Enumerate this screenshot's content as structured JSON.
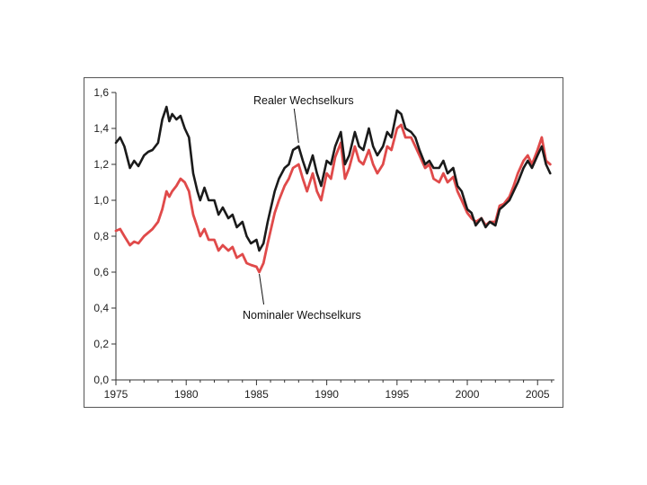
{
  "chart_data": {
    "type": "line",
    "title": "",
    "xlabel": "",
    "ylabel": "",
    "xlim": [
      1975,
      2006.2
    ],
    "ylim": [
      0,
      1.6
    ],
    "x_ticks": [
      1975,
      1980,
      1985,
      1990,
      1995,
      2000,
      2005
    ],
    "x_tick_labels": [
      "1975",
      "1980",
      "1985",
      "1990",
      "1995",
      "2000",
      "2005"
    ],
    "y_ticks": [
      0,
      0.2,
      0.4,
      0.6,
      0.8,
      1.0,
      1.2,
      1.4,
      1.6
    ],
    "y_tick_labels": [
      "0,0",
      "0,2",
      "0,4",
      "0,6",
      "0,8",
      "1,0",
      "1,2",
      "1,4",
      "1,6"
    ],
    "grid": false,
    "legend": "none",
    "annotations": [
      {
        "text": "Realer Wechselkurs",
        "series": 0,
        "point": [
          1988.0,
          1.31
        ]
      },
      {
        "text": "Nominaler Wechselkurs",
        "series": 1,
        "point": [
          1985.2,
          0.6
        ]
      }
    ],
    "series": [
      {
        "color": "#1a1a1a",
        "x": [
          1975.0,
          1975.3,
          1975.6,
          1976.0,
          1976.3,
          1976.6,
          1977.0,
          1977.3,
          1977.6,
          1978.0,
          1978.3,
          1978.6,
          1978.8,
          1979.0,
          1979.3,
          1979.6,
          1979.9,
          1980.2,
          1980.5,
          1980.8,
          1981.0,
          1981.3,
          1981.6,
          1982.0,
          1982.3,
          1982.6,
          1983.0,
          1983.3,
          1983.6,
          1984.0,
          1984.3,
          1984.6,
          1985.0,
          1985.2,
          1985.5,
          1985.8,
          1986.0,
          1986.3,
          1986.6,
          1987.0,
          1987.3,
          1987.6,
          1988.0,
          1988.3,
          1988.6,
          1989.0,
          1989.3,
          1989.6,
          1990.0,
          1990.3,
          1990.6,
          1991.0,
          1991.3,
          1991.6,
          1992.0,
          1992.3,
          1992.6,
          1993.0,
          1993.3,
          1993.6,
          1994.0,
          1994.3,
          1994.6,
          1995.0,
          1995.3,
          1995.6,
          1996.0,
          1996.3,
          1996.6,
          1997.0,
          1997.3,
          1997.6,
          1998.0,
          1998.3,
          1998.6,
          1999.0,
          1999.3,
          1999.6,
          2000.0,
          2000.3,
          2000.6,
          2001.0,
          2001.3,
          2001.6,
          2002.0,
          2002.3,
          2002.6,
          2003.0,
          2003.3,
          2003.6,
          2004.0,
          2004.3,
          2004.6,
          2005.0,
          2005.3,
          2005.6,
          2005.9
        ],
        "values": [
          1.32,
          1.35,
          1.3,
          1.18,
          1.22,
          1.19,
          1.25,
          1.27,
          1.28,
          1.32,
          1.45,
          1.52,
          1.44,
          1.48,
          1.45,
          1.47,
          1.4,
          1.35,
          1.15,
          1.05,
          1.0,
          1.07,
          1.0,
          1.0,
          0.92,
          0.96,
          0.9,
          0.92,
          0.85,
          0.88,
          0.8,
          0.76,
          0.78,
          0.72,
          0.76,
          0.88,
          0.95,
          1.05,
          1.12,
          1.18,
          1.2,
          1.28,
          1.3,
          1.22,
          1.15,
          1.25,
          1.15,
          1.08,
          1.22,
          1.2,
          1.3,
          1.38,
          1.2,
          1.25,
          1.38,
          1.3,
          1.28,
          1.4,
          1.3,
          1.25,
          1.3,
          1.38,
          1.35,
          1.5,
          1.48,
          1.4,
          1.38,
          1.35,
          1.28,
          1.2,
          1.22,
          1.18,
          1.18,
          1.22,
          1.15,
          1.18,
          1.08,
          1.05,
          0.95,
          0.93,
          0.86,
          0.9,
          0.85,
          0.88,
          0.86,
          0.95,
          0.97,
          1.0,
          1.05,
          1.1,
          1.18,
          1.22,
          1.18,
          1.25,
          1.3,
          1.2,
          1.15
        ]
      },
      {
        "color": "#e04a4a",
        "x": [
          1975.0,
          1975.3,
          1975.6,
          1976.0,
          1976.3,
          1976.6,
          1977.0,
          1977.3,
          1977.6,
          1978.0,
          1978.3,
          1978.6,
          1978.8,
          1979.0,
          1979.3,
          1979.6,
          1979.9,
          1980.2,
          1980.5,
          1980.8,
          1981.0,
          1981.3,
          1981.6,
          1982.0,
          1982.3,
          1982.6,
          1983.0,
          1983.3,
          1983.6,
          1984.0,
          1984.3,
          1984.6,
          1985.0,
          1985.2,
          1985.5,
          1985.8,
          1986.0,
          1986.3,
          1986.6,
          1987.0,
          1987.3,
          1987.6,
          1988.0,
          1988.3,
          1988.6,
          1989.0,
          1989.3,
          1989.6,
          1990.0,
          1990.3,
          1990.6,
          1991.0,
          1991.3,
          1991.6,
          1992.0,
          1992.3,
          1992.6,
          1993.0,
          1993.3,
          1993.6,
          1994.0,
          1994.3,
          1994.6,
          1995.0,
          1995.3,
          1995.6,
          1996.0,
          1996.3,
          1996.6,
          1997.0,
          1997.3,
          1997.6,
          1998.0,
          1998.3,
          1998.6,
          1999.0,
          1999.3,
          1999.6,
          2000.0,
          2000.3,
          2000.6,
          2001.0,
          2001.3,
          2001.6,
          2002.0,
          2002.3,
          2002.6,
          2003.0,
          2003.3,
          2003.6,
          2004.0,
          2004.3,
          2004.6,
          2005.0,
          2005.3,
          2005.6,
          2005.9
        ],
        "values": [
          0.83,
          0.84,
          0.8,
          0.75,
          0.77,
          0.76,
          0.8,
          0.82,
          0.84,
          0.88,
          0.95,
          1.05,
          1.02,
          1.05,
          1.08,
          1.12,
          1.1,
          1.05,
          0.92,
          0.85,
          0.8,
          0.84,
          0.78,
          0.78,
          0.72,
          0.75,
          0.72,
          0.74,
          0.68,
          0.7,
          0.65,
          0.64,
          0.63,
          0.6,
          0.65,
          0.76,
          0.83,
          0.93,
          1.0,
          1.08,
          1.12,
          1.18,
          1.2,
          1.12,
          1.05,
          1.15,
          1.05,
          1.0,
          1.15,
          1.12,
          1.24,
          1.32,
          1.12,
          1.18,
          1.3,
          1.22,
          1.2,
          1.28,
          1.2,
          1.15,
          1.2,
          1.3,
          1.28,
          1.4,
          1.42,
          1.35,
          1.35,
          1.3,
          1.25,
          1.18,
          1.2,
          1.12,
          1.1,
          1.15,
          1.1,
          1.13,
          1.05,
          1.0,
          0.93,
          0.9,
          0.88,
          0.9,
          0.86,
          0.88,
          0.88,
          0.97,
          0.98,
          1.02,
          1.08,
          1.15,
          1.22,
          1.25,
          1.2,
          1.28,
          1.35,
          1.22,
          1.2
        ]
      }
    ]
  }
}
